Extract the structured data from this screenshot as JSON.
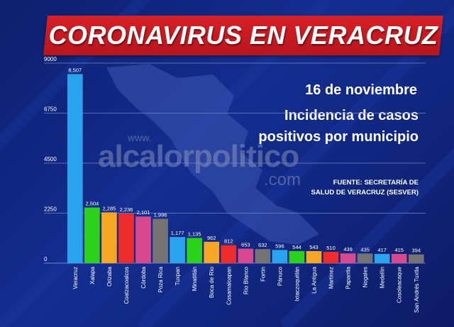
{
  "header": {
    "title": "CORONAVIRUS EN VERACRUZ",
    "date": "16 de noviembre",
    "subtitle_line1": "Incidencia de casos",
    "subtitle_line2": "positivos por municipio",
    "source_line1": "FUENTE: SECRETARÍA DE",
    "source_line2": "SALUD DE VERACRUZ (SESVER)"
  },
  "watermark": {
    "www": "www.",
    "text": "alcalorpolitico",
    "com": ".com"
  },
  "colors": {
    "background": "#102684",
    "title_banner": "#d81f26",
    "gridline": "#6f86c9"
  },
  "chart_data": {
    "type": "bar",
    "ylim": [
      0,
      9000
    ],
    "yticks": [
      0,
      2250,
      4500,
      6750,
      9000
    ],
    "grid": true,
    "categories": [
      "Veracruz",
      "Xalapa",
      "Orizaba",
      "Coatzacoalcos",
      "Córdoba",
      "Poza Rica",
      "Tuxpan",
      "Minatitlán",
      "Boca de Río",
      "Cosamaloapan",
      "Río Blanco",
      "Fortín",
      "Pánuco",
      "Ixtaczoquitlán",
      "La Antigua",
      "Martínez",
      "Papantla",
      "Nogales",
      "Medellín",
      "Cosoleacaque",
      "San Andrés Tuxtla"
    ],
    "values": [
      8507,
      2504,
      2285,
      2236,
      2101,
      1996,
      1177,
      1135,
      962,
      812,
      653,
      632,
      596,
      544,
      543,
      510,
      439,
      435,
      417,
      415,
      394
    ],
    "value_labels": [
      "8,507",
      "2,504",
      "2,285",
      "2,236",
      "2,101",
      "1,996",
      "1,177",
      "1,135",
      "962",
      "812",
      "653",
      "632",
      "596",
      "544",
      "543",
      "510",
      "439",
      "435",
      "417",
      "415",
      "394"
    ],
    "bar_colors": [
      "#29a3ee",
      "#2bd21a",
      "#f5a623",
      "#ef2b2b",
      "#d7498f",
      "#737373",
      "#29a3ee",
      "#2bd21a",
      "#f5a623",
      "#ef2b2b",
      "#d7498f",
      "#737373",
      "#29a3ee",
      "#2bd21a",
      "#f5a623",
      "#ef2b2b",
      "#d7498f",
      "#737373",
      "#29a3ee",
      "#d7498f",
      "#737373"
    ]
  }
}
